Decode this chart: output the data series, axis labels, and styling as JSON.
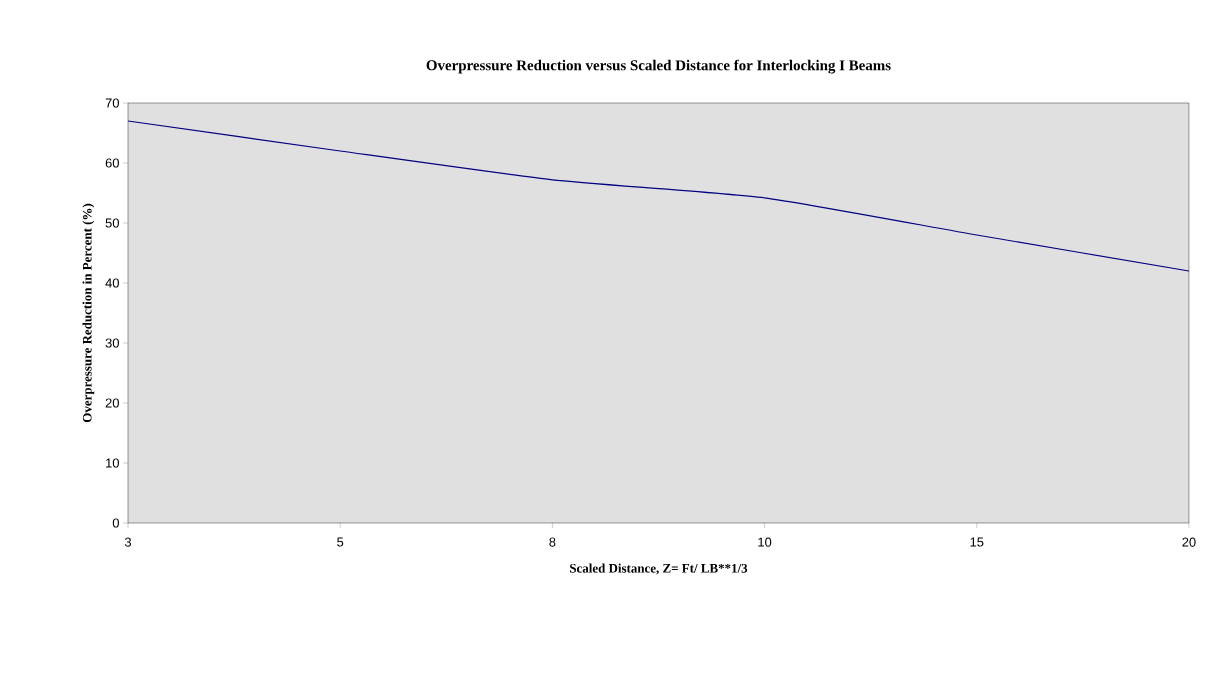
{
  "chart_data": {
    "type": "line",
    "title": "Overpressure Reduction versus Scaled Distance for Interlocking I Beams",
    "xlabel": "Scaled Distance, Z= Ft/ LB**1/3",
    "ylabel": "Overpressure Reduction in Percent (%)",
    "categories": [
      "3",
      "5",
      "8",
      "10",
      "15",
      "20"
    ],
    "series": [
      {
        "color": "#000080",
        "values": [
          67,
          62,
          57.2,
          54.2,
          48,
          42
        ]
      }
    ],
    "ylim": [
      0,
      70
    ],
    "yticks": [
      0,
      10,
      20,
      30,
      40,
      50,
      60,
      70
    ],
    "marker": "none",
    "line_style": "solid"
  }
}
